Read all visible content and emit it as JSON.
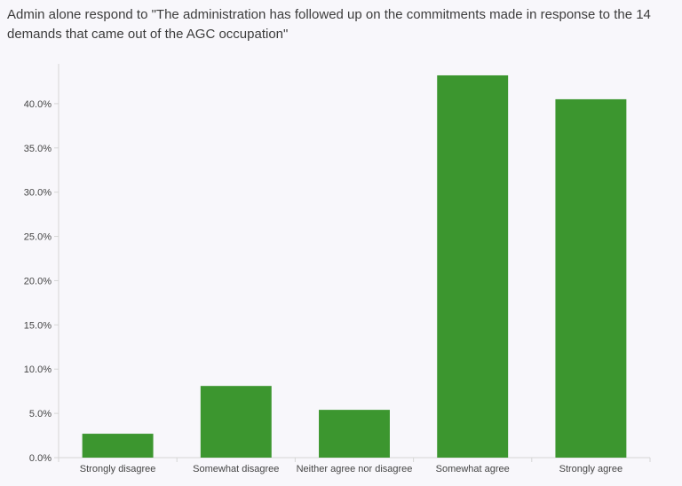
{
  "chart_data": {
    "type": "bar",
    "title": "Admin alone respond to \"The administration has followed up on the commitments made in response to the 14 demands that came out of the AGC occupation\"",
    "categories": [
      "Strongly disagree",
      "Somewhat disagree",
      "Neither agree nor disagree",
      "Somewhat agree",
      "Strongly agree"
    ],
    "values": [
      2.7,
      8.1,
      5.4,
      43.2,
      40.5
    ],
    "value_format": "percent",
    "ylim": [
      0,
      44.5
    ],
    "yticks": [
      "0.0%",
      "5.0%",
      "10.0%",
      "15.0%",
      "20.0%",
      "25.0%",
      "30.0%",
      "35.0%",
      "40.0%"
    ],
    "ytick_values": [
      0,
      5,
      10,
      15,
      20,
      25,
      30,
      35,
      40
    ],
    "xlabel": "",
    "ylabel": "",
    "grid": false,
    "legend": "none",
    "bar_color": "#3c962f",
    "axis_color": "#d6d6d6"
  }
}
